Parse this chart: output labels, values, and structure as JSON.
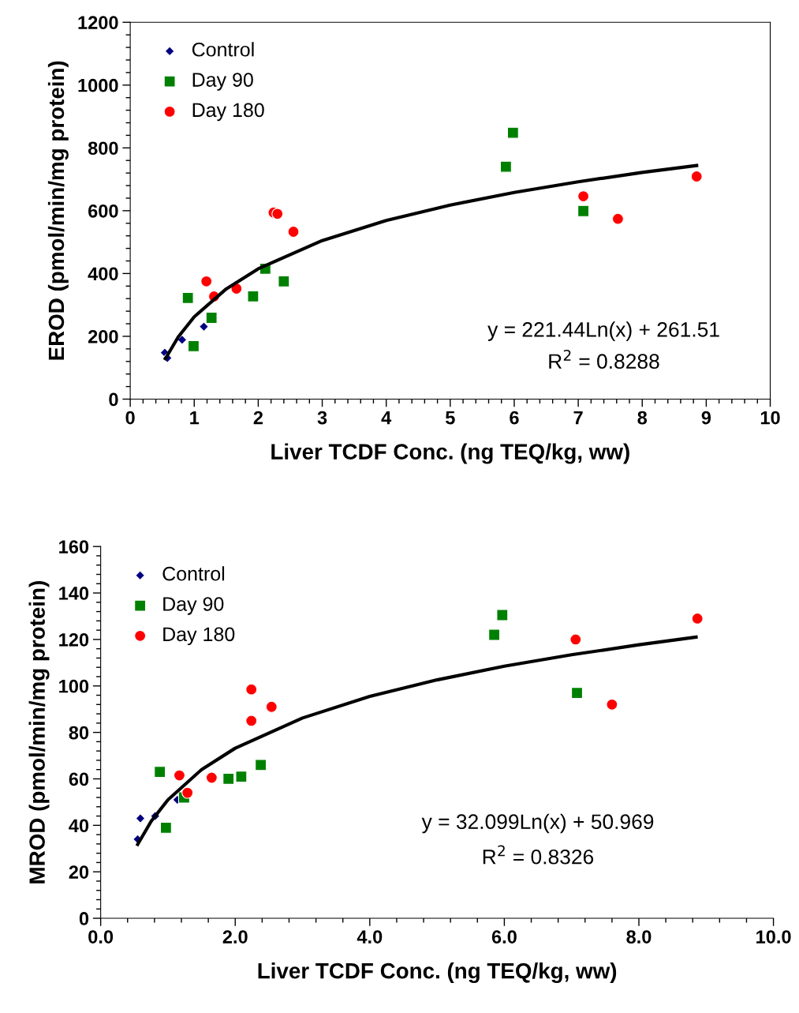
{
  "chart_data": [
    {
      "type": "scatter",
      "xlabel": "Liver TCDF Conc. (ng TEQ/kg, ww)",
      "ylabel": "EROD (pmol/min/mg protein)",
      "xlim": [
        0,
        10
      ],
      "xticks": [
        0,
        1,
        2,
        3,
        4,
        5,
        6,
        7,
        8,
        9,
        10
      ],
      "ylim": [
        0,
        1200
      ],
      "yticks": [
        0,
        200,
        400,
        600,
        800,
        1000,
        1200
      ],
      "grid": false,
      "legend": "top left",
      "annotations": [
        "y = 221.44Ln(x) + 261.51",
        "R$^{2}$ = 0.8288"
      ],
      "series": [
        {
          "name": "Control",
          "color": "#000080",
          "marker": "diamond",
          "x": [
            0.54,
            0.58,
            0.81,
            1.15
          ],
          "values": [
            148,
            131,
            189,
            231
          ]
        },
        {
          "name": "Day 90",
          "color": "#008000",
          "marker": "square",
          "x": [
            0.9,
            1.27,
            0.99,
            1.92,
            2.11,
            2.4,
            5.98,
            5.87,
            7.08
          ],
          "values": [
            322,
            259,
            169,
            327,
            415,
            375,
            848,
            740,
            599
          ]
        },
        {
          "name": "Day 180",
          "color": "#ff0000",
          "marker": "circle",
          "x": [
            1.19,
            1.31,
            1.66,
            2.24,
            2.3,
            2.55,
            7.08,
            7.62,
            8.85
          ],
          "values": [
            375,
            327,
            352,
            594,
            590,
            533,
            646,
            574,
            709
          ]
        },
        {
          "type": "line",
          "color": "#000000",
          "marker": "none",
          "x": [
            0.55,
            0.75,
            1,
            1.5,
            2,
            3,
            4,
            5,
            6,
            7,
            8,
            8.85
          ],
          "values": [
            129,
            198,
            262,
            351,
            415,
            505,
            569,
            618,
            658,
            692,
            722,
            744
          ]
        }
      ]
    },
    {
      "type": "scatter",
      "xlabel": "Liver TCDF Conc. (ng TEQ/kg, ww)",
      "ylabel": "MROD (pmol/min/mg protein)",
      "xlim": [
        0,
        10
      ],
      "xticks": [
        {
          "value": 0,
          "label": "0.0"
        },
        {
          "value": 2,
          "label": "2.0"
        },
        {
          "value": 4,
          "label": "4.0"
        },
        {
          "value": 6,
          "label": "6.0"
        },
        {
          "value": 8,
          "label": "8.0"
        },
        {
          "value": 10,
          "label": "10.0"
        }
      ],
      "ylim": [
        0,
        160
      ],
      "yticks": [
        0,
        20,
        40,
        60,
        80,
        100,
        120,
        140,
        160
      ],
      "grid": false,
      "legend": "top left",
      "annotations": [
        "y = 32.099Ln(x) + 50.969",
        "R$^{2}$ = 0.8326"
      ],
      "series": [
        {
          "name": "Control",
          "color": "#000080",
          "marker": "diamond",
          "x": [
            0.59,
            0.55,
            0.81,
            1.14
          ],
          "values": [
            43,
            34,
            44,
            51
          ]
        },
        {
          "name": "Day 90",
          "color": "#008000",
          "marker": "square",
          "x": [
            0.88,
            1.24,
            0.97,
            1.9,
            2.09,
            2.38,
            5.97,
            5.85,
            7.08
          ],
          "values": [
            63,
            52,
            39,
            60,
            61,
            66,
            130.5,
            122,
            97
          ]
        },
        {
          "name": "Day 180",
          "color": "#ff0000",
          "marker": "circle",
          "x": [
            1.17,
            1.29,
            1.65,
            2.24,
            2.24,
            2.54,
            7.06,
            7.6,
            8.87
          ],
          "values": [
            61.5,
            54,
            60.5,
            98.5,
            85,
            91,
            120,
            92,
            129
          ]
        },
        {
          "type": "line",
          "color": "#000000",
          "marker": "none",
          "x": [
            0.55,
            0.75,
            1,
            1.5,
            2,
            3,
            4,
            5,
            6,
            7,
            8,
            8.85
          ],
          "values": [
            31.8,
            41.7,
            51.0,
            64.0,
            73.2,
            86.2,
            95.5,
            102.6,
            108.5,
            113.4,
            117.7,
            121.0
          ]
        }
      ]
    }
  ]
}
